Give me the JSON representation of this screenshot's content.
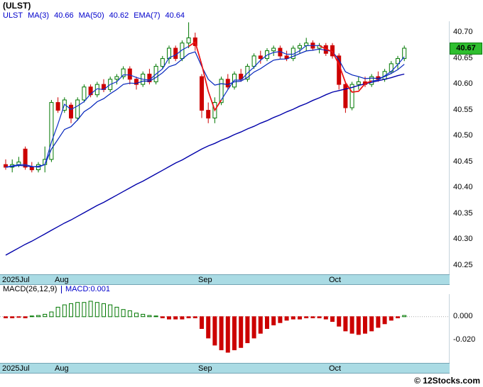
{
  "header": {
    "title": "(ULST)",
    "legend": [
      "ULST",
      "MA(3)",
      "40.66",
      "MA(50)",
      "40.62",
      "EMA(7)",
      "40.64"
    ]
  },
  "price_badge": "40.67",
  "macd_header": {
    "params": "MACD(26,12,9)",
    "value": "MACD:0.001"
  },
  "footer": {
    "credit": "© 12Stocks.com"
  },
  "colors": {
    "up": "#007700",
    "down": "#cc0000",
    "ma_fast": "#1133cc",
    "ma_slow": "#0022bb",
    "ma50": "#0000aa",
    "signal": "#ee1111",
    "badge_bg": "#2fbf2f",
    "legend_blue": "#0000cc",
    "axis_strip": "#aadbe4"
  },
  "chart_data": {
    "type": "candlestick",
    "symbol": "ULST",
    "title": "(ULST)",
    "x_axis": {
      "labels": [
        "2025Jul",
        "Aug",
        "Sep",
        "Oct"
      ],
      "bar_index": [
        0,
        8,
        30,
        50
      ],
      "total_bars": 62
    },
    "price_panel": {
      "ylim": [
        40.233,
        40.722
      ],
      "yticks": [
        40.7,
        40.65,
        40.6,
        40.55,
        40.5,
        40.45,
        40.4,
        40.35,
        40.3,
        40.25
      ],
      "last_close": 40.67,
      "indicators": {
        "ma3": 40.66,
        "ma50": 40.62,
        "ema7": 40.64
      },
      "candles": [
        [
          40.445,
          40.455,
          40.435,
          40.44
        ],
        [
          40.44,
          40.455,
          40.43,
          40.445
        ],
        [
          40.445,
          40.46,
          40.44,
          40.45
        ],
        [
          40.475,
          40.48,
          40.435,
          40.44
        ],
        [
          40.44,
          40.45,
          40.43,
          40.435
        ],
        [
          40.435,
          40.45,
          40.43,
          40.445
        ],
        [
          40.445,
          40.48,
          40.43,
          40.455
        ],
        [
          40.455,
          40.57,
          40.45,
          40.565
        ],
        [
          40.565,
          40.575,
          40.545,
          40.55
        ],
        [
          40.55,
          40.575,
          40.545,
          40.57
        ],
        [
          40.56,
          40.565,
          40.525,
          40.535
        ],
        [
          40.535,
          40.575,
          40.53,
          40.57
        ],
        [
          40.57,
          40.6,
          40.565,
          40.595
        ],
        [
          40.595,
          40.6,
          40.575,
          40.58
        ],
        [
          40.58,
          40.605,
          40.575,
          40.6
        ],
        [
          40.6,
          40.61,
          40.585,
          40.59
        ],
        [
          40.59,
          40.615,
          40.585,
          40.61
        ],
        [
          40.61,
          40.62,
          40.6,
          40.615
        ],
        [
          40.615,
          40.635,
          40.61,
          40.63
        ],
        [
          40.63,
          40.635,
          40.6,
          40.61
        ],
        [
          40.61,
          40.615,
          40.59,
          40.6
        ],
        [
          40.6,
          40.625,
          40.595,
          40.62
        ],
        [
          40.62,
          40.63,
          40.6,
          40.605
        ],
        [
          40.605,
          40.64,
          40.6,
          40.635
        ],
        [
          40.635,
          40.655,
          40.63,
          40.65
        ],
        [
          40.65,
          40.675,
          40.64,
          40.67
        ],
        [
          40.67,
          40.675,
          40.645,
          40.65
        ],
        [
          40.65,
          40.685,
          40.645,
          40.68
        ],
        [
          40.68,
          40.72,
          40.67,
          40.69
        ],
        [
          40.69,
          40.7,
          40.665,
          40.675
        ],
        [
          40.615,
          40.62,
          40.535,
          40.55
        ],
        [
          40.55,
          40.565,
          40.525,
          40.535
        ],
        [
          40.535,
          40.575,
          40.525,
          40.565
        ],
        [
          40.565,
          40.615,
          40.56,
          40.61
        ],
        [
          40.61,
          40.62,
          40.59,
          40.595
        ],
        [
          40.595,
          40.625,
          40.59,
          40.62
        ],
        [
          40.62,
          40.63,
          40.605,
          40.61
        ],
        [
          40.61,
          40.64,
          40.605,
          40.635
        ],
        [
          40.635,
          40.66,
          40.63,
          40.655
        ],
        [
          40.655,
          40.665,
          40.64,
          40.65
        ],
        [
          40.65,
          40.67,
          40.645,
          40.665
        ],
        [
          40.665,
          40.675,
          40.655,
          40.67
        ],
        [
          40.67,
          40.675,
          40.65,
          40.655
        ],
        [
          40.655,
          40.665,
          40.645,
          40.65
        ],
        [
          40.65,
          40.675,
          40.645,
          40.67
        ],
        [
          40.67,
          40.68,
          40.66,
          40.675
        ],
        [
          40.675,
          40.69,
          40.665,
          40.68
        ],
        [
          40.68,
          40.685,
          40.665,
          40.67
        ],
        [
          40.67,
          40.68,
          40.66,
          40.675
        ],
        [
          40.675,
          40.68,
          40.655,
          40.66
        ],
        [
          40.675,
          40.68,
          40.65,
          40.655
        ],
        [
          40.655,
          40.66,
          40.59,
          40.6
        ],
        [
          40.6,
          40.605,
          40.545,
          40.555
        ],
        [
          40.555,
          40.605,
          40.55,
          40.6
        ],
        [
          40.6,
          40.615,
          40.59,
          40.605
        ],
        [
          40.605,
          40.615,
          40.595,
          40.6
        ],
        [
          40.6,
          40.62,
          40.595,
          40.615
        ],
        [
          40.615,
          40.625,
          40.605,
          40.61
        ],
        [
          40.61,
          40.63,
          40.605,
          40.625
        ],
        [
          40.625,
          40.645,
          40.62,
          40.64
        ],
        [
          40.64,
          40.655,
          40.63,
          40.65
        ],
        [
          40.65,
          40.675,
          40.645,
          40.67
        ]
      ],
      "overlays": {
        "ma50": [
          40.27,
          40.277,
          40.284,
          40.291,
          40.297,
          40.304,
          40.311,
          40.318,
          40.325,
          40.332,
          40.338,
          40.345,
          40.352,
          40.359,
          40.366,
          40.372,
          40.379,
          40.386,
          40.393,
          40.4,
          40.407,
          40.413,
          40.42,
          40.427,
          40.434,
          40.441,
          40.448,
          40.454,
          40.461,
          40.468,
          40.475,
          40.481,
          40.486,
          40.492,
          40.497,
          40.503,
          40.508,
          40.514,
          40.519,
          40.525,
          40.53,
          40.536,
          40.541,
          40.547,
          40.552,
          40.558,
          40.563,
          40.569,
          40.574,
          40.58,
          40.585,
          40.588,
          40.591,
          40.594,
          40.598,
          40.601,
          40.604,
          40.607,
          40.61,
          40.613,
          40.617,
          40.62
        ],
        "red_segments": [
          [
            28,
            33
          ],
          [
            48,
            56
          ]
        ]
      }
    },
    "macd_panel": {
      "type": "bar",
      "ylim": [
        -0.039,
        0.019
      ],
      "yticks": [
        {
          "v": 0,
          "label": "0.000"
        },
        {
          "v": -0.02,
          "label": "-0.020"
        }
      ],
      "current": 0.001,
      "values": [
        -0.001,
        -0.001,
        -0.0005,
        -0.001,
        0.0,
        0.001,
        0.002,
        0.004,
        0.008,
        0.01,
        0.011,
        0.012,
        0.012,
        0.013,
        0.012,
        0.011,
        0.01,
        0.008,
        0.006,
        0.005,
        0.003,
        0.002,
        0.001,
        0.0,
        -0.001,
        -0.002,
        -0.002,
        -0.002,
        -0.001,
        -0.001,
        -0.01,
        -0.018,
        -0.024,
        -0.028,
        -0.03,
        -0.028,
        -0.026,
        -0.022,
        -0.018,
        -0.014,
        -0.01,
        -0.007,
        -0.005,
        -0.003,
        -0.002,
        -0.002,
        -0.001,
        -0.001,
        -0.001,
        -0.002,
        -0.004,
        -0.008,
        -0.012,
        -0.014,
        -0.015,
        -0.014,
        -0.012,
        -0.009,
        -0.006,
        -0.003,
        -0.001,
        0.001
      ]
    }
  }
}
